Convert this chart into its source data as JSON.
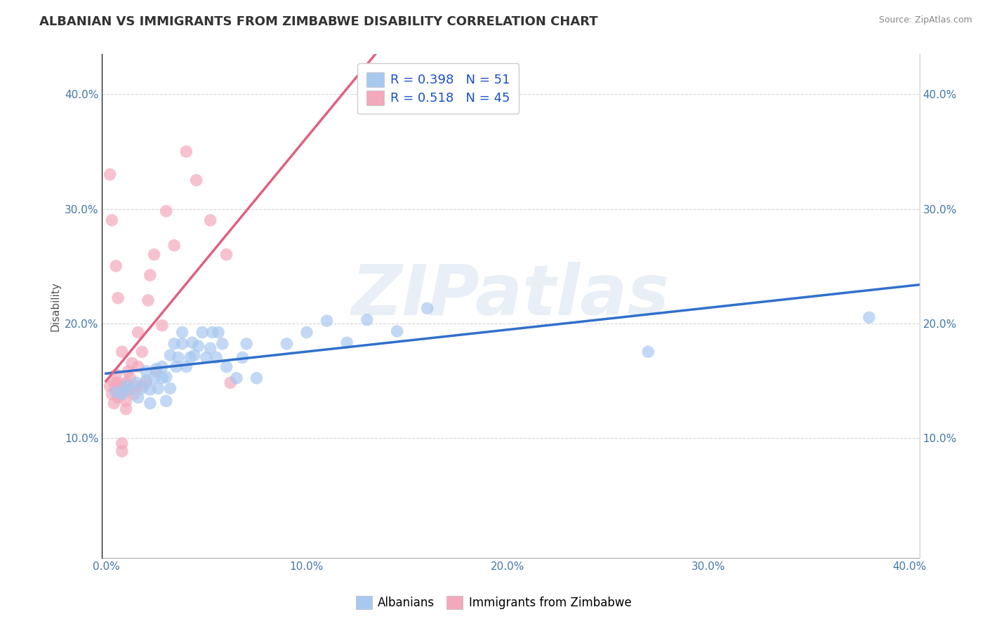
{
  "title": "ALBANIAN VS IMMIGRANTS FROM ZIMBABWE DISABILITY CORRELATION CHART",
  "source": "Source: ZipAtlas.com",
  "ylabel": "Disability",
  "xlabel": "",
  "xlim": [
    -0.002,
    0.405
  ],
  "ylim": [
    -0.005,
    0.435
  ],
  "xticks": [
    0.0,
    0.1,
    0.2,
    0.3,
    0.4
  ],
  "yticks": [
    0.1,
    0.2,
    0.3,
    0.4
  ],
  "xtick_labels": [
    "0.0%",
    "10.0%",
    "20.0%",
    "30.0%",
    "40.0%"
  ],
  "ytick_labels": [
    "10.0%",
    "20.0%",
    "30.0%",
    "40.0%"
  ],
  "legend_labels": [
    "Albanians",
    "Immigrants from Zimbabwe"
  ],
  "blue_color": "#A8C8F0",
  "pink_color": "#F4A8BC",
  "blue_line_color": "#3070CC",
  "pink_line_color": "#E06080",
  "r_blue": 0.398,
  "n_blue": 51,
  "r_pink": 0.518,
  "n_pink": 45,
  "watermark": "ZIPatlas",
  "title_fontsize": 13,
  "axis_label_fontsize": 11,
  "tick_fontsize": 11,
  "blue_scatter": [
    [
      0.005,
      0.14
    ],
    [
      0.008,
      0.138
    ],
    [
      0.01,
      0.145
    ],
    [
      0.012,
      0.142
    ],
    [
      0.015,
      0.148
    ],
    [
      0.016,
      0.135
    ],
    [
      0.018,
      0.143
    ],
    [
      0.02,
      0.15
    ],
    [
      0.02,
      0.158
    ],
    [
      0.022,
      0.142
    ],
    [
      0.022,
      0.13
    ],
    [
      0.024,
      0.152
    ],
    [
      0.025,
      0.16
    ],
    [
      0.026,
      0.143
    ],
    [
      0.028,
      0.152
    ],
    [
      0.028,
      0.162
    ],
    [
      0.03,
      0.132
    ],
    [
      0.03,
      0.153
    ],
    [
      0.032,
      0.143
    ],
    [
      0.032,
      0.172
    ],
    [
      0.034,
      0.182
    ],
    [
      0.035,
      0.162
    ],
    [
      0.036,
      0.17
    ],
    [
      0.038,
      0.182
    ],
    [
      0.038,
      0.192
    ],
    [
      0.04,
      0.162
    ],
    [
      0.042,
      0.17
    ],
    [
      0.043,
      0.183
    ],
    [
      0.044,
      0.172
    ],
    [
      0.046,
      0.18
    ],
    [
      0.048,
      0.192
    ],
    [
      0.05,
      0.17
    ],
    [
      0.052,
      0.178
    ],
    [
      0.053,
      0.192
    ],
    [
      0.055,
      0.17
    ],
    [
      0.056,
      0.192
    ],
    [
      0.058,
      0.182
    ],
    [
      0.06,
      0.162
    ],
    [
      0.065,
      0.152
    ],
    [
      0.068,
      0.17
    ],
    [
      0.07,
      0.182
    ],
    [
      0.075,
      0.152
    ],
    [
      0.09,
      0.182
    ],
    [
      0.1,
      0.192
    ],
    [
      0.11,
      0.202
    ],
    [
      0.12,
      0.183
    ],
    [
      0.13,
      0.203
    ],
    [
      0.145,
      0.193
    ],
    [
      0.16,
      0.213
    ],
    [
      0.27,
      0.175
    ],
    [
      0.38,
      0.205
    ]
  ],
  "pink_scatter": [
    [
      0.002,
      0.145
    ],
    [
      0.003,
      0.138
    ],
    [
      0.004,
      0.13
    ],
    [
      0.004,
      0.148
    ],
    [
      0.005,
      0.155
    ],
    [
      0.005,
      0.142
    ],
    [
      0.006,
      0.148
    ],
    [
      0.006,
      0.135
    ],
    [
      0.007,
      0.145
    ],
    [
      0.007,
      0.138
    ],
    [
      0.008,
      0.145
    ],
    [
      0.008,
      0.095
    ],
    [
      0.008,
      0.088
    ],
    [
      0.009,
      0.142
    ],
    [
      0.01,
      0.148
    ],
    [
      0.01,
      0.132
    ],
    [
      0.01,
      0.125
    ],
    [
      0.011,
      0.158
    ],
    [
      0.012,
      0.152
    ],
    [
      0.012,
      0.142
    ],
    [
      0.013,
      0.165
    ],
    [
      0.014,
      0.138
    ],
    [
      0.015,
      0.145
    ],
    [
      0.016,
      0.162
    ],
    [
      0.016,
      0.192
    ],
    [
      0.018,
      0.145
    ],
    [
      0.018,
      0.175
    ],
    [
      0.02,
      0.148
    ],
    [
      0.021,
      0.22
    ],
    [
      0.022,
      0.242
    ],
    [
      0.024,
      0.26
    ],
    [
      0.025,
      0.158
    ],
    [
      0.028,
      0.198
    ],
    [
      0.03,
      0.298
    ],
    [
      0.034,
      0.268
    ],
    [
      0.04,
      0.35
    ],
    [
      0.045,
      0.325
    ],
    [
      0.052,
      0.29
    ],
    [
      0.06,
      0.26
    ],
    [
      0.062,
      0.148
    ],
    [
      0.002,
      0.33
    ],
    [
      0.003,
      0.29
    ],
    [
      0.005,
      0.25
    ],
    [
      0.006,
      0.222
    ],
    [
      0.008,
      0.175
    ]
  ]
}
